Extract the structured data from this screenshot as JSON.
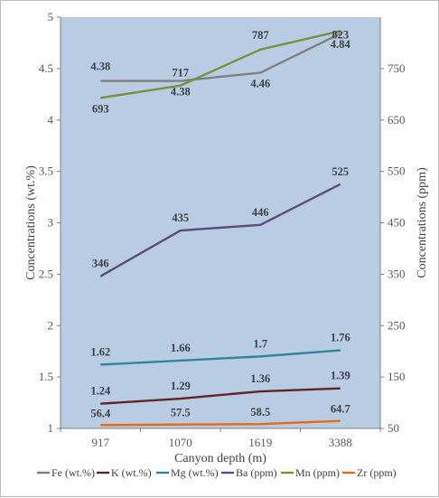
{
  "chart_data": {
    "type": "line",
    "categories": [
      "917",
      "1070",
      "1619",
      "3388"
    ],
    "xlabel": "Canyon depth (m)",
    "ylabel_left": "Concentrations (wt.%)",
    "ylabel_right": "Concentrations (ppm)",
    "ylim_left": [
      1,
      5
    ],
    "ylim_right": [
      50,
      850
    ],
    "yticks_left": [
      "1",
      "1.5",
      "2",
      "2.5",
      "3",
      "3.5",
      "4",
      "4.5",
      "5"
    ],
    "yticks_right": [
      "50",
      "150",
      "250",
      "350",
      "450",
      "550",
      "650",
      "750"
    ],
    "plot_background": "#b8cce4",
    "legend_position": "bottom",
    "series": [
      {
        "name": "Fe (wt.%)",
        "axis": "left",
        "color": "#808080",
        "values": [
          4.38,
          4.38,
          4.46,
          4.84
        ],
        "labels": [
          "4.38",
          "4.38",
          "4.46",
          "4.84"
        ]
      },
      {
        "name": "K (wt.%)",
        "axis": "left",
        "color": "#632523",
        "values": [
          1.24,
          1.29,
          1.36,
          1.39
        ],
        "labels": [
          "1.24",
          "1.29",
          "1.36",
          "1.39"
        ]
      },
      {
        "name": "Mg (wt.%)",
        "axis": "left",
        "color": "#31859c",
        "values": [
          1.62,
          1.66,
          1.7,
          1.76
        ],
        "labels": [
          "1.62",
          "1.66",
          "1.7",
          "1.76"
        ]
      },
      {
        "name": "Ba (ppm)",
        "axis": "right",
        "color": "#604a7b",
        "values": [
          346,
          435,
          446,
          525
        ],
        "labels": [
          "346",
          "435",
          "446",
          "525"
        ]
      },
      {
        "name": "Mn (ppm)",
        "axis": "right",
        "color": "#77933c",
        "values": [
          693,
          717,
          787,
          823
        ],
        "labels": [
          "693",
          "717",
          "787",
          "823"
        ]
      },
      {
        "name": "Zr (ppm)",
        "axis": "right",
        "color": "#e46c0a",
        "values": [
          56.4,
          57.5,
          58.5,
          64.7
        ],
        "labels": [
          "56.4",
          "57.5",
          "58.5",
          "64.7"
        ]
      }
    ]
  }
}
